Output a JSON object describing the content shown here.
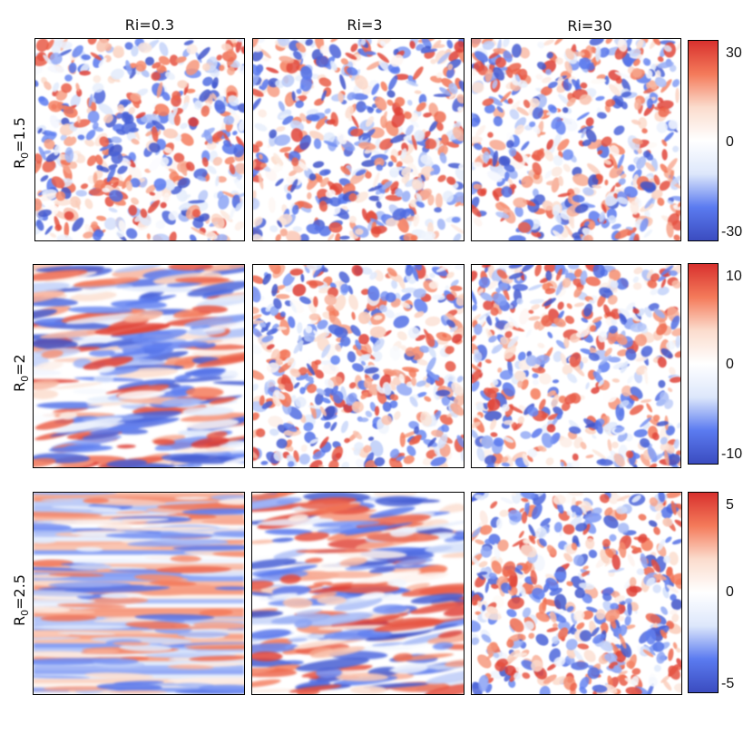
{
  "chart_data": {
    "type": "heatmap",
    "columns": [
      "Ri=0.3",
      "Ri=3",
      "Ri=30"
    ],
    "rows": [
      {
        "label_main": "R",
        "label_sub": "0",
        "label_rest": "=1.5",
        "vmin": -30,
        "vmax": 30,
        "colorbar_ticks": [
          "30",
          "0",
          "-30"
        ],
        "patterns": [
          "isotropic",
          "isotropic",
          "isotropic"
        ]
      },
      {
        "label_main": "R",
        "label_sub": "0",
        "label_rest": "=2",
        "vmin": -10,
        "vmax": 10,
        "colorbar_ticks": [
          "10",
          "0",
          "-10"
        ],
        "patterns": [
          "streaky",
          "isotropic",
          "isotropic"
        ]
      },
      {
        "label_main": "R",
        "label_sub": "0",
        "label_rest": "=2.5",
        "vmin": -5,
        "vmax": 5,
        "colorbar_ticks": [
          "5",
          "0",
          "-5"
        ],
        "patterns": [
          "layered",
          "streaky",
          "isotropic"
        ]
      }
    ],
    "colormap": [
      "#3b4cc0",
      "#5b7bf0",
      "#dde7fb",
      "#ffffff",
      "#fbdccd",
      "#f47a5a",
      "#d8312e"
    ]
  }
}
